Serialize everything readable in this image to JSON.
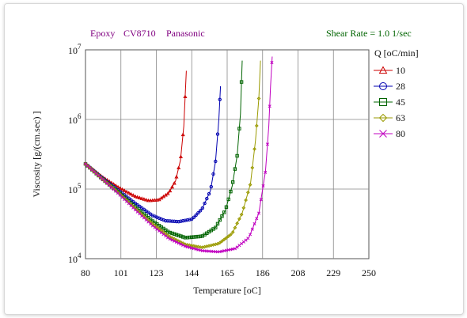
{
  "header": {
    "material": "Epoxy",
    "product": "CV8710",
    "maker": "Panasonic",
    "shear_rate": "Shear Rate = 1.0 1/sec"
  },
  "colors": {
    "header_left": "#800080",
    "header_right": "#006400",
    "grid": "#888888"
  },
  "chart_data": {
    "type": "line",
    "xlabel": "Temperature [oC]",
    "ylabel": "Viscosity [g/(cm.sec) ]",
    "xlim": [
      80,
      250
    ],
    "ylim": [
      10000,
      10000000
    ],
    "yscale": "log",
    "grid": true,
    "legend_title": "Q [oC/min]",
    "legend_position": "right",
    "x_ticks": [
      "80",
      "101",
      "123",
      "144",
      "165",
      "186",
      "208",
      "229",
      "250"
    ],
    "y_ticks": [
      {
        "base": "10",
        "exp": "4"
      },
      {
        "base": "10",
        "exp": "5"
      },
      {
        "base": "10",
        "exp": "6"
      },
      {
        "base": "10",
        "exp": "7"
      }
    ],
    "series": [
      {
        "name": "10",
        "color": "#cc0000",
        "marker": "triangle",
        "points": [
          [
            80,
            230000
          ],
          [
            90,
            150000
          ],
          [
            100,
            105000
          ],
          [
            110,
            78000
          ],
          [
            118,
            68000
          ],
          [
            124,
            70000
          ],
          [
            130,
            88000
          ],
          [
            134,
            130000
          ],
          [
            137,
            260000
          ],
          [
            139,
            800000
          ],
          [
            140.5,
            5000000
          ]
        ]
      },
      {
        "name": "28",
        "color": "#0000b0",
        "marker": "circle",
        "points": [
          [
            80,
            230000
          ],
          [
            90,
            145000
          ],
          [
            100,
            95000
          ],
          [
            110,
            62000
          ],
          [
            120,
            42000
          ],
          [
            128,
            35000
          ],
          [
            136,
            34000
          ],
          [
            144,
            37000
          ],
          [
            150,
            52000
          ],
          [
            155,
            95000
          ],
          [
            158,
            250000
          ],
          [
            160,
            1000000
          ],
          [
            161,
            3000000
          ]
        ]
      },
      {
        "name": "45",
        "color": "#006400",
        "marker": "square",
        "points": [
          [
            80,
            230000
          ],
          [
            90,
            140000
          ],
          [
            100,
            90000
          ],
          [
            110,
            55000
          ],
          [
            120,
            35000
          ],
          [
            130,
            24000
          ],
          [
            140,
            20000
          ],
          [
            150,
            21000
          ],
          [
            158,
            28000
          ],
          [
            164,
            50000
          ],
          [
            168,
            110000
          ],
          [
            171,
            300000
          ],
          [
            173,
            1200000
          ],
          [
            174,
            7000000
          ]
        ]
      },
      {
        "name": "63",
        "color": "#9a9a00",
        "marker": "diamond",
        "points": [
          [
            80,
            230000
          ],
          [
            90,
            140000
          ],
          [
            100,
            88000
          ],
          [
            110,
            52000
          ],
          [
            120,
            32000
          ],
          [
            130,
            21000
          ],
          [
            140,
            16000
          ],
          [
            150,
            14500
          ],
          [
            160,
            16500
          ],
          [
            168,
            23000
          ],
          [
            174,
            45000
          ],
          [
            179,
            120000
          ],
          [
            182,
            500000
          ],
          [
            184,
            2000000
          ],
          [
            185,
            7000000
          ]
        ]
      },
      {
        "name": "80",
        "color": "#c000c0",
        "marker": "x",
        "points": [
          [
            80,
            230000
          ],
          [
            90,
            140000
          ],
          [
            100,
            85000
          ],
          [
            110,
            50000
          ],
          [
            120,
            30000
          ],
          [
            130,
            19500
          ],
          [
            140,
            15000
          ],
          [
            150,
            13000
          ],
          [
            160,
            12500
          ],
          [
            170,
            14000
          ],
          [
            178,
            20000
          ],
          [
            184,
            45000
          ],
          [
            188,
            180000
          ],
          [
            190,
            800000
          ],
          [
            191,
            3000000
          ],
          [
            192,
            8000000
          ]
        ]
      }
    ]
  }
}
